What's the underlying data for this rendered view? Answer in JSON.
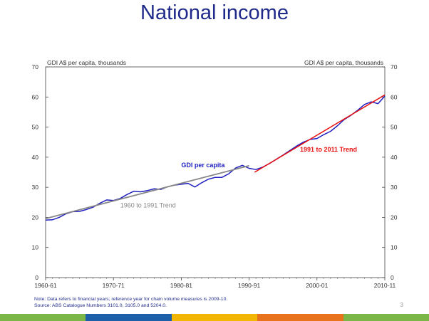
{
  "slide": {
    "title": "National income",
    "page_number": "3",
    "note": "Note:  Data refers to financial years;  reference year for chain volume  measures is 2009-10.",
    "source": "Source:  ABS Catalogue Numbers 3101.0, 3105.0 and 5204.0.",
    "footer_colors": [
      "#7ab648",
      "#1d5fa8",
      "#f2b705",
      "#e8731c",
      "#7ab648"
    ]
  },
  "chart_data": {
    "type": "line",
    "ylabel_left": "GDI A$ per capita, thousands",
    "ylabel_right": "GDI A$ per capita, thousands",
    "ylim": [
      0,
      70
    ],
    "yticks": [
      "0",
      "10",
      "20",
      "30",
      "40",
      "50",
      "60",
      "70"
    ],
    "xlim": [
      1960,
      2010
    ],
    "xticks": [
      {
        "x": 1960,
        "label": "1960-61"
      },
      {
        "x": 1970,
        "label": "1970-71"
      },
      {
        "x": 1980,
        "label": "1980-81"
      },
      {
        "x": 1990,
        "label": "1990-91"
      },
      {
        "x": 2000,
        "label": "2000-01"
      },
      {
        "x": 2010,
        "label": "2010-11"
      }
    ],
    "grid": false,
    "series": [
      {
        "name": "GDI per capita",
        "color": "#2020c0",
        "points": [
          [
            1960,
            19.1
          ],
          [
            1961,
            19.2
          ],
          [
            1962,
            20.0
          ],
          [
            1963,
            21.2
          ],
          [
            1964,
            21.9
          ],
          [
            1965,
            22.0
          ],
          [
            1966,
            22.6
          ],
          [
            1967,
            23.4
          ],
          [
            1968,
            24.7
          ],
          [
            1969,
            25.8
          ],
          [
            1970,
            25.6
          ],
          [
            1971,
            26.3
          ],
          [
            1972,
            27.6
          ],
          [
            1973,
            28.7
          ],
          [
            1974,
            28.5
          ],
          [
            1975,
            28.9
          ],
          [
            1976,
            29.5
          ],
          [
            1977,
            29.3
          ],
          [
            1978,
            30.2
          ],
          [
            1979,
            30.7
          ],
          [
            1980,
            31.0
          ],
          [
            1981,
            31.3
          ],
          [
            1982,
            30.1
          ],
          [
            1983,
            31.5
          ],
          [
            1984,
            32.7
          ],
          [
            1985,
            33.3
          ],
          [
            1986,
            33.3
          ],
          [
            1987,
            34.5
          ],
          [
            1988,
            36.4
          ],
          [
            1989,
            37.3
          ],
          [
            1990,
            36.3
          ],
          [
            1991,
            35.9
          ],
          [
            1992,
            36.7
          ],
          [
            1993,
            37.9
          ],
          [
            1994,
            39.3
          ],
          [
            1995,
            40.7
          ],
          [
            1996,
            42.2
          ],
          [
            1997,
            43.7
          ],
          [
            1998,
            45.0
          ],
          [
            1999,
            45.9
          ],
          [
            2000,
            46.2
          ],
          [
            2001,
            47.5
          ],
          [
            2002,
            48.6
          ],
          [
            2003,
            50.4
          ],
          [
            2004,
            52.5
          ],
          [
            2005,
            53.9
          ],
          [
            2006,
            55.6
          ],
          [
            2007,
            57.5
          ],
          [
            2008,
            58.4
          ],
          [
            2009,
            57.8
          ],
          [
            2010,
            60.3
          ]
        ]
      },
      {
        "name": "1960 to 1991 Trend",
        "color": "#888888",
        "points": [
          [
            1960,
            19.6
          ],
          [
            1990,
            37.2
          ]
        ]
      },
      {
        "name": "1991 to 2011 Trend",
        "color": "#e81010",
        "points": [
          [
            1990.8,
            35.0
          ],
          [
            2010,
            60.7
          ]
        ]
      }
    ],
    "annotations": [
      {
        "text": "GDI per capita",
        "color": "#2020c0"
      },
      {
        "text": "1960 to 1991 Trend",
        "color": "#888888"
      },
      {
        "text": "1991 to 2011 Trend",
        "color": "#e81010"
      }
    ]
  }
}
